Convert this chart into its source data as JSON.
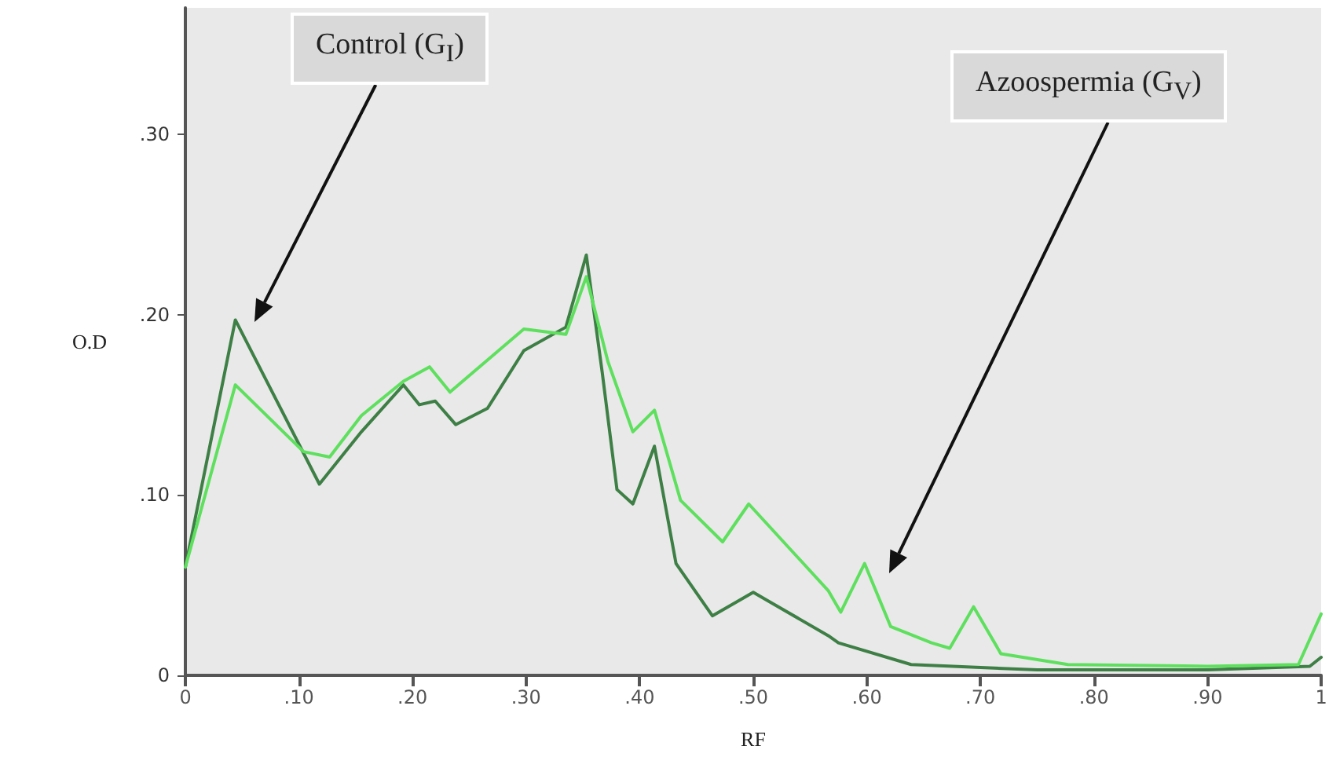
{
  "chart_data": {
    "type": "line",
    "xlabel": "RF",
    "ylabel": "O.D",
    "xlim": [
      0,
      1
    ],
    "xticks": [
      {
        "value": 0,
        "label": "0"
      },
      {
        "value": 0.1,
        "label": ".10"
      },
      {
        "value": 0.2,
        "label": ".20"
      },
      {
        "value": 0.3,
        "label": ".30"
      },
      {
        "value": 0.4,
        "label": ".40"
      },
      {
        "value": 0.5,
        "label": ".50"
      },
      {
        "value": 0.6,
        "label": ".60"
      },
      {
        "value": 0.7,
        "label": ".70"
      },
      {
        "value": 0.8,
        "label": ".80"
      },
      {
        "value": 0.9,
        "label": ".90"
      },
      {
        "value": 1,
        "label": "1"
      }
    ],
    "ylim": [
      0,
      0.37
    ],
    "yticks": [
      {
        "value": 0,
        "label": "0"
      },
      {
        "value": 0.1,
        "label": ".10"
      },
      {
        "value": 0.2,
        "label": ".20"
      },
      {
        "value": 0.3,
        "label": ".30"
      }
    ],
    "grid": false,
    "marker": "none",
    "line_style": "solid",
    "series": [
      {
        "color": "#3d7f45",
        "x": [
          0,
          0.044,
          0.118,
          0.155,
          0.192,
          0.206,
          0.22,
          0.238,
          0.266,
          0.298,
          0.335,
          0.353,
          0.367,
          0.38,
          0.394,
          0.413,
          0.432,
          0.464,
          0.5,
          0.566,
          0.575,
          0.639,
          0.75,
          0.9,
          0.99,
          1
        ],
        "values": [
          0.06,
          0.197,
          0.106,
          0.135,
          0.161,
          0.15,
          0.152,
          0.139,
          0.148,
          0.18,
          0.193,
          0.233,
          0.168,
          0.103,
          0.095,
          0.127,
          0.062,
          0.033,
          0.046,
          0.022,
          0.018,
          0.006,
          0.003,
          0.003,
          0.005,
          0.01
        ]
      },
      {
        "color": "#5ee05e",
        "x": [
          0,
          0.044,
          0.104,
          0.127,
          0.155,
          0.192,
          0.215,
          0.233,
          0.298,
          0.335,
          0.353,
          0.372,
          0.394,
          0.413,
          0.436,
          0.473,
          0.496,
          0.566,
          0.577,
          0.598,
          0.621,
          0.657,
          0.673,
          0.694,
          0.718,
          0.777,
          0.9,
          0.98,
          1
        ],
        "values": [
          0.06,
          0.161,
          0.124,
          0.121,
          0.144,
          0.163,
          0.171,
          0.157,
          0.192,
          0.189,
          0.221,
          0.174,
          0.135,
          0.147,
          0.097,
          0.074,
          0.095,
          0.047,
          0.035,
          0.062,
          0.027,
          0.018,
          0.015,
          0.038,
          0.012,
          0.006,
          0.005,
          0.006,
          0.034
        ]
      }
    ],
    "annotations": [
      "Control (G$_{I}$)",
      "Azoospermia (G$_{V}$)"
    ]
  }
}
